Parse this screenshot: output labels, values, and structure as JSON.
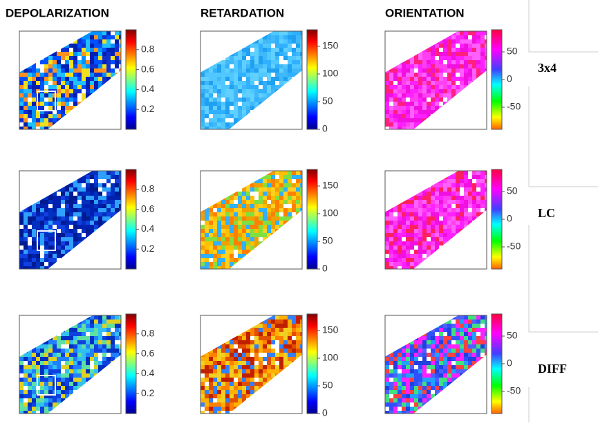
{
  "columns": [
    {
      "title": "DEPOLARIZATION",
      "ticks": [
        0.8,
        0.6,
        0.4,
        0.2
      ],
      "clim": [
        0,
        1
      ]
    },
    {
      "title": "RETARDATION",
      "ticks": [
        150,
        100,
        50,
        0
      ],
      "clim": [
        0,
        180
      ]
    },
    {
      "title": "ORIENTATION",
      "ticks": [
        50,
        0,
        -50
      ],
      "clim": [
        -90,
        90
      ]
    }
  ],
  "rows": [
    {
      "label": "3x4"
    },
    {
      "label": "LC"
    },
    {
      "label": "DIFF"
    }
  ]
}
